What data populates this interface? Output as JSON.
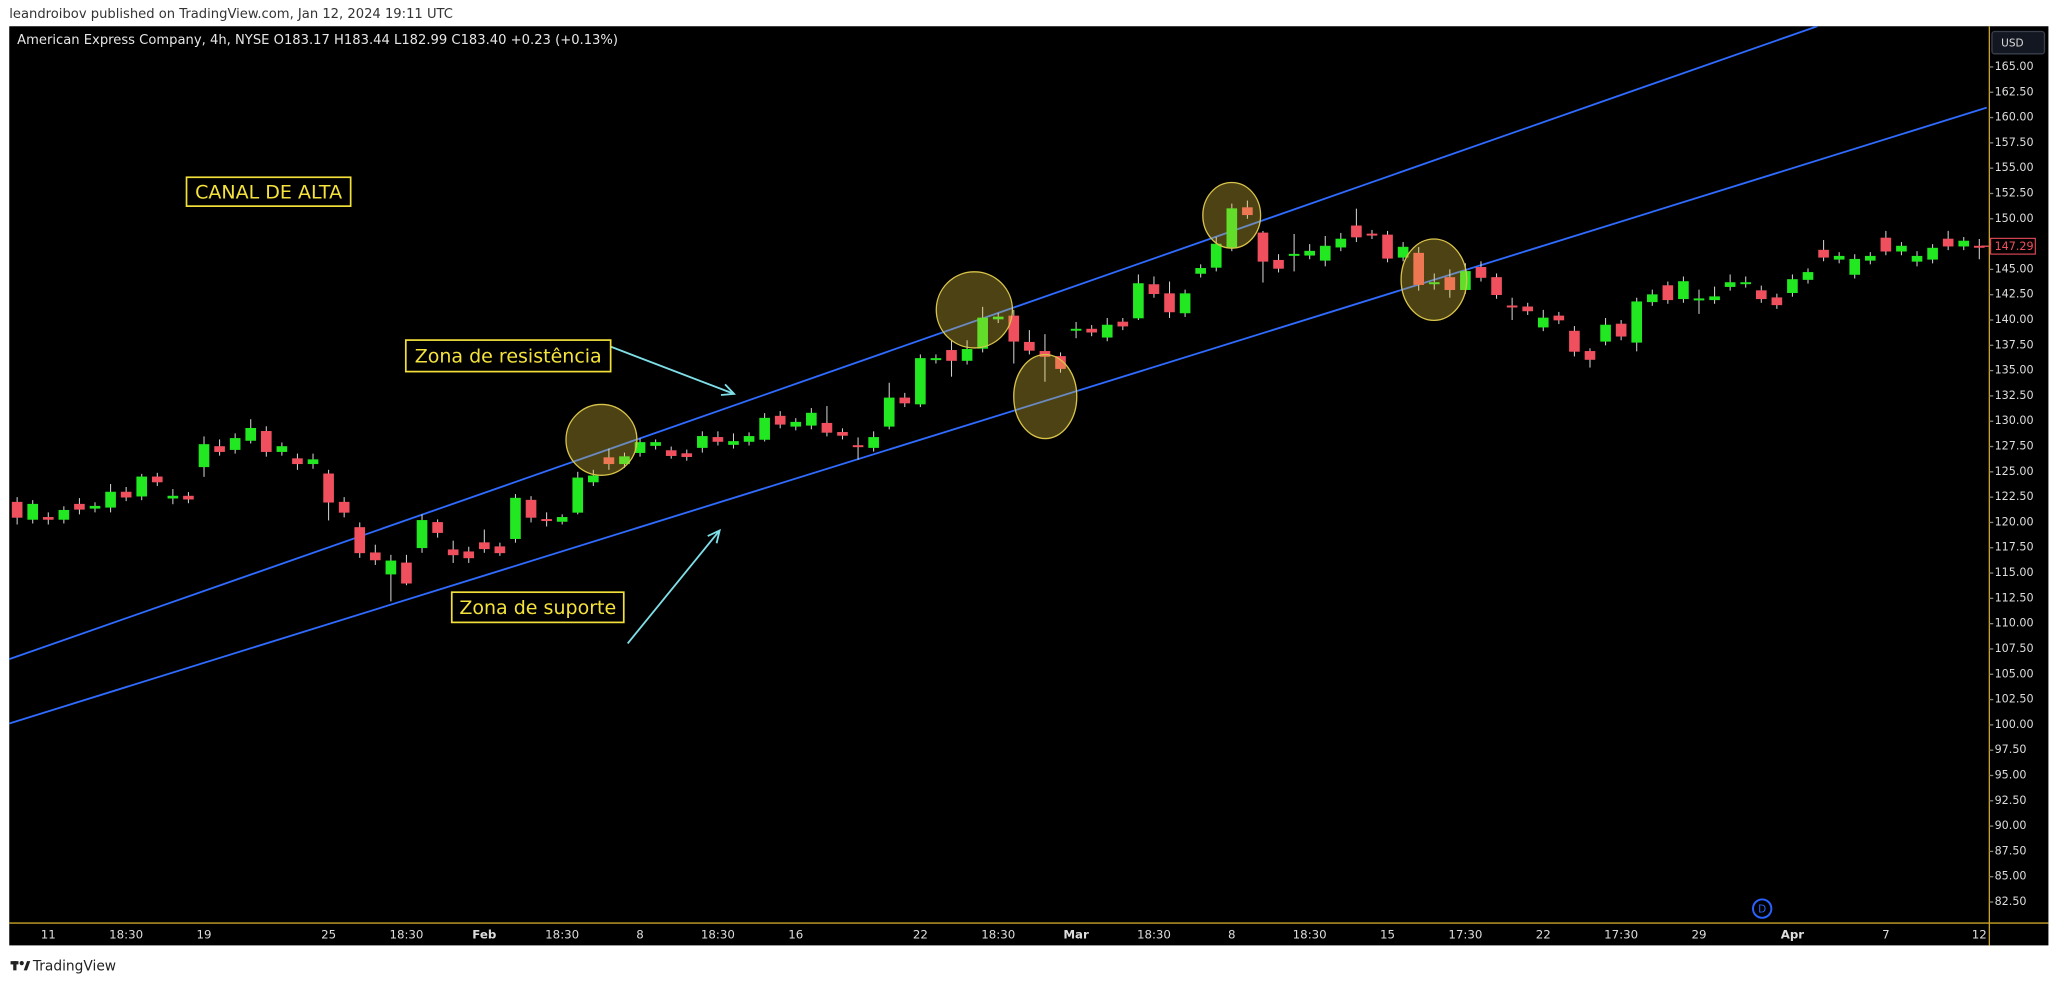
{
  "header": {
    "publisher": "leandroibov published on TradingView.com, Jan 12, 2024 19:11 UTC",
    "legend": "American Express Company, 4h, NYSE  O183.17  H183.44  L182.99  C183.40  +0.23 (+0.13%)",
    "currency": "USD",
    "badge": "D",
    "footer": "TradingView"
  },
  "chart_data": {
    "type": "candlestick",
    "annotations": [
      "CANAL DE ALTA",
      "Zona de resistência",
      "Zona de suporte"
    ],
    "up_color": "#22e822",
    "down_color": "#f0505e",
    "wick_color": "#cfcfcf",
    "grid": false,
    "ylim": [
      80.42,
      169.02
    ],
    "yticks": [
      {
        "value": 82.5,
        "label": "82.50"
      },
      {
        "value": 85,
        "label": "85.00"
      },
      {
        "value": 87.5,
        "label": "87.50"
      },
      {
        "value": 90,
        "label": "90.00"
      },
      {
        "value": 92.5,
        "label": "92.50"
      },
      {
        "value": 95,
        "label": "95.00"
      },
      {
        "value": 97.5,
        "label": "97.50"
      },
      {
        "value": 100,
        "label": "100.00"
      },
      {
        "value": 102.5,
        "label": "102.50"
      },
      {
        "value": 105,
        "label": "105.00"
      },
      {
        "value": 107.5,
        "label": "107.50"
      },
      {
        "value": 110,
        "label": "110.00"
      },
      {
        "value": 112.5,
        "label": "112.50"
      },
      {
        "value": 115,
        "label": "115.00"
      },
      {
        "value": 117.5,
        "label": "117.50"
      },
      {
        "value": 120,
        "label": "120.00"
      },
      {
        "value": 122.5,
        "label": "122.50"
      },
      {
        "value": 125,
        "label": "125.00"
      },
      {
        "value": 127.5,
        "label": "127.50"
      },
      {
        "value": 130,
        "label": "130.00"
      },
      {
        "value": 132.5,
        "label": "132.50"
      },
      {
        "value": 135,
        "label": "135.00"
      },
      {
        "value": 137.5,
        "label": "137.50"
      },
      {
        "value": 140,
        "label": "140.00"
      },
      {
        "value": 142.5,
        "label": "142.50"
      },
      {
        "value": 145,
        "label": "145.00"
      },
      {
        "value": 147.5,
        "label": "147.50"
      },
      {
        "value": 150,
        "label": "150.00"
      },
      {
        "value": 152.5,
        "label": "152.50"
      },
      {
        "value": 155,
        "label": "155.00"
      },
      {
        "value": 157.5,
        "label": "157.50"
      },
      {
        "value": 160,
        "label": "160.00"
      },
      {
        "value": 162.5,
        "label": "162.50"
      },
      {
        "value": 165,
        "label": "165.00"
      }
    ],
    "categories": [
      null,
      null,
      "11",
      null,
      null,
      null,
      null,
      "18:30",
      null,
      null,
      null,
      null,
      "19",
      null,
      null,
      null,
      null,
      null,
      null,
      null,
      "25",
      null,
      null,
      null,
      null,
      "18:30",
      null,
      null,
      null,
      null,
      "Feb",
      null,
      null,
      null,
      null,
      "18:30",
      null,
      null,
      null,
      null,
      "8",
      null,
      null,
      null,
      null,
      "18:30",
      null,
      null,
      null,
      null,
      "16",
      null,
      null,
      null,
      null,
      null,
      null,
      null,
      "22",
      null,
      null,
      null,
      null,
      "18:30",
      null,
      null,
      null,
      null,
      "Mar",
      null,
      null,
      null,
      null,
      "18:30",
      null,
      null,
      null,
      null,
      "8",
      null,
      null,
      null,
      null,
      "18:30",
      null,
      null,
      null,
      null,
      "15",
      null,
      null,
      null,
      null,
      "17:30",
      null,
      null,
      null,
      null,
      "22",
      null,
      null,
      null,
      null,
      "17:30",
      null,
      null,
      null,
      null,
      "29",
      null,
      null,
      null,
      null,
      null,
      "Apr",
      null,
      null,
      null,
      null,
      null,
      "7",
      null,
      null,
      null,
      null,
      null,
      "12"
    ],
    "open": [
      122,
      120.3,
      120.5,
      120.3,
      121.8,
      121.4,
      121.5,
      123,
      122.6,
      124.5,
      122.4,
      122.6,
      125.5,
      127.5,
      127.2,
      128.1,
      129,
      127,
      126.3,
      125.8,
      124.8,
      122,
      119.5,
      117,
      114.9,
      116,
      117.5,
      120,
      117.3,
      117.1,
      118,
      117.6,
      118.4,
      122.2,
      120.3,
      120.1,
      121,
      124,
      126.4,
      125.8,
      126.9,
      127.6,
      127.1,
      126.8,
      127.4,
      128.4,
      127.7,
      128,
      128.2,
      130.5,
      129.5,
      129.6,
      129.8,
      128.9,
      127.6,
      127.4,
      129.5,
      132.3,
      131.7,
      136.1,
      137,
      136,
      137.2,
      140.1,
      140.4,
      137.8,
      136.9,
      136.4,
      139,
      139.1,
      138.3,
      139.8,
      140.2,
      143.5,
      142.6,
      140.7,
      144.6,
      145.2,
      147.2,
      151.1,
      148.6,
      145.9,
      146.4,
      146.4,
      145.9,
      147.2,
      149.3,
      148.5,
      148.4,
      146.2,
      146.6,
      143.6,
      144.2,
      143,
      145.2,
      144.2,
      141.4,
      141.3,
      139.3,
      140.4,
      138.9,
      136.9,
      137.9,
      139.6,
      137.8,
      141.8,
      143.4,
      142.1,
      142,
      142,
      143.3,
      143.6,
      142.9,
      142.2,
      142.7,
      144,
      146.9,
      146,
      144.5,
      145.9,
      148.1,
      146.8,
      145.8,
      146,
      148,
      147.3,
      147.3
    ],
    "high": [
      122.5,
      122.2,
      121,
      121.6,
      122.4,
      122,
      123.8,
      123.5,
      124.8,
      124.9,
      123.3,
      123,
      128.5,
      128.2,
      128.8,
      130.2,
      129.5,
      127.9,
      126.8,
      126.8,
      125.2,
      122.5,
      120,
      117.8,
      116.8,
      116.8,
      120.8,
      120.3,
      118.2,
      117.6,
      119.3,
      118,
      122.8,
      122.6,
      121,
      120.8,
      125,
      125.2,
      127.3,
      126.9,
      128.3,
      128.2,
      127.5,
      127.2,
      129,
      129,
      128.8,
      128.9,
      130.8,
      131,
      130.3,
      131.3,
      131.5,
      129.3,
      128.4,
      129,
      133.8,
      132.8,
      136.6,
      136.6,
      138,
      138,
      141.3,
      140.7,
      141,
      139,
      138.6,
      136.8,
      139.8,
      139.5,
      140.2,
      140.2,
      144.5,
      144.3,
      143.8,
      143,
      145.5,
      148.2,
      151.5,
      151.8,
      148.8,
      146.5,
      148.5,
      147.5,
      148.3,
      148.6,
      151,
      148.9,
      148.8,
      147.7,
      147.2,
      144.6,
      145,
      145.6,
      145.8,
      144.6,
      142.2,
      141.7,
      141,
      140.8,
      139.4,
      137.2,
      140.2,
      140,
      142.2,
      143,
      143.8,
      144.3,
      143,
      143.3,
      144.5,
      144.3,
      143.4,
      142.6,
      144.5,
      145.1,
      147.9,
      146.7,
      146.5,
      146.7,
      148.8,
      147.7,
      146.8,
      147.5,
      148.8,
      148.2,
      148
    ],
    "low": [
      119.8,
      119.9,
      119.8,
      119.9,
      120.8,
      121,
      121,
      122.1,
      122.2,
      123.6,
      121.8,
      121.9,
      124.5,
      126.6,
      126.8,
      127.8,
      126.5,
      126.6,
      125.2,
      125.3,
      120.2,
      120.5,
      116.5,
      115.8,
      112.2,
      113.8,
      117,
      118.5,
      116,
      116,
      117,
      116.7,
      118,
      120,
      119.6,
      119.8,
      120.8,
      123.6,
      125.2,
      125.4,
      126.5,
      127.2,
      126.3,
      126.1,
      126.9,
      127.6,
      127.3,
      127.6,
      128,
      129.3,
      129.1,
      129.2,
      128.5,
      128.2,
      126.2,
      127,
      129.2,
      131.4,
      131.4,
      135.7,
      134.4,
      135.6,
      136.8,
      139.7,
      135.7,
      136.6,
      133.9,
      134.8,
      138.2,
      138.4,
      137.9,
      139,
      140,
      142.2,
      140.2,
      140.3,
      144.2,
      144.8,
      146.8,
      150,
      143.7,
      144.7,
      144.8,
      146,
      145.3,
      146.8,
      147.7,
      148,
      145.7,
      145.8,
      142.9,
      143,
      142.2,
      142.6,
      143.8,
      142.1,
      140,
      140.5,
      138.9,
      139.6,
      136.4,
      135.3,
      137.5,
      138,
      136.9,
      141.4,
      141.6,
      141.7,
      140.6,
      141.6,
      142.9,
      143.2,
      141.7,
      141.1,
      142.3,
      143.6,
      145.8,
      145.6,
      144.1,
      145.5,
      146.4,
      146.4,
      145.3,
      145.6,
      146.9,
      146.9,
      146
    ],
    "close": [
      120.5,
      121.8,
      120.3,
      121.2,
      121.3,
      121.6,
      123,
      122.5,
      124.5,
      124,
      122.6,
      122.3,
      127.7,
      127,
      128.3,
      129.3,
      127,
      127.5,
      125.8,
      126.2,
      122,
      121,
      117,
      116.3,
      116.2,
      114,
      120.2,
      119,
      116.8,
      116.5,
      117.4,
      117,
      122.4,
      120.5,
      120.2,
      120.5,
      124.4,
      124.6,
      125.8,
      126.5,
      127.9,
      127.9,
      126.6,
      126.5,
      128.5,
      128,
      128,
      128.5,
      130.3,
      129.7,
      129.9,
      130.8,
      128.9,
      128.6,
      127.5,
      128.4,
      132.3,
      131.8,
      136.2,
      136.2,
      136,
      137.1,
      140.2,
      140.3,
      137.9,
      137,
      136.4,
      135.2,
      139.1,
      138.8,
      139.5,
      139.4,
      143.6,
      142.6,
      140.8,
      142.6,
      145.1,
      147.5,
      151,
      150.4,
      145.8,
      145.1,
      146.5,
      146.8,
      147.3,
      148,
      148.2,
      148.4,
      146.1,
      147.2,
      143.5,
      143.7,
      143,
      144.8,
      144.2,
      142.5,
      141.3,
      140.9,
      140.2,
      140,
      136.9,
      136.1,
      139.5,
      138.4,
      141.8,
      142.5,
      142,
      143.8,
      142.1,
      142.3,
      143.7,
      143.7,
      142.1,
      141.5,
      144,
      144.7,
      146.2,
      146.3,
      146,
      146.3,
      146.8,
      147.3,
      146.3,
      147.1,
      147.3,
      147.8,
      147.29
    ]
  }
}
